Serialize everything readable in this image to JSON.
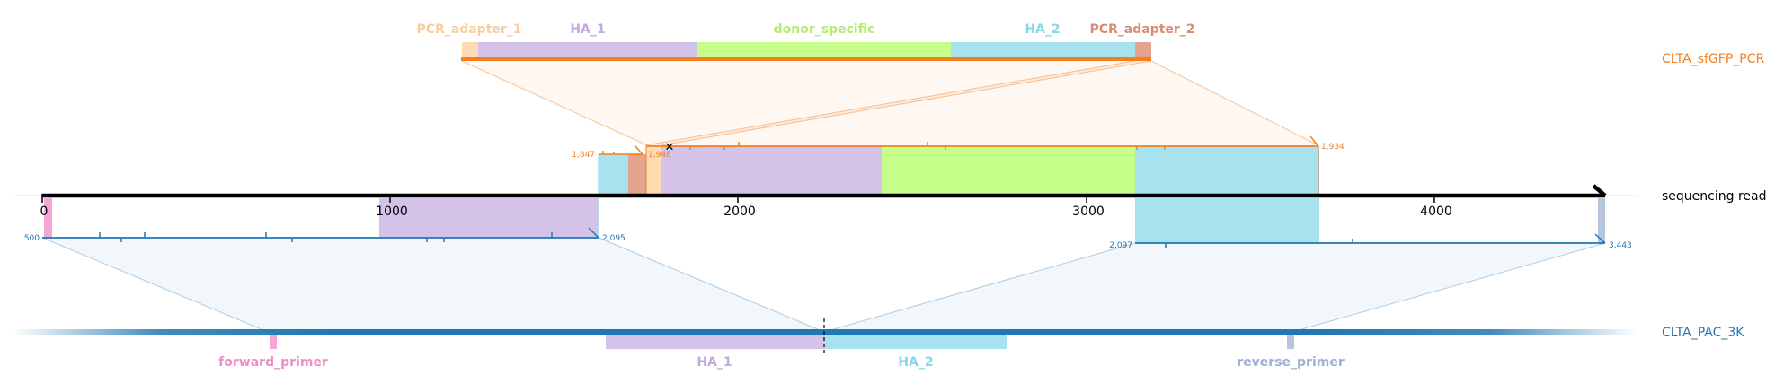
{
  "colors": {
    "orange": "#F37F1D",
    "blue": "#1F77B4",
    "black": "#000000",
    "ha1": "#D4C2E8",
    "ha2": "#A6E3EE",
    "donor": "#C5FF8A",
    "pcr1": "#FDDCB3",
    "pcr2": "#E4A590",
    "fwd": "#F4A6D7",
    "rev": "#B7C4DD",
    "ha1_text": "#C3A9E2",
    "ha2_text": "#86D7EA",
    "donor_text": "#B4EC6E",
    "pcr1_text": "#F8CE9C",
    "pcr2_text": "#DA8C72",
    "fwd_text": "#F08BC9",
    "rev_text": "#9FB0D4"
  },
  "tracks": {
    "top": "CLTA_sfGFP_PCR",
    "middle": "sequencing read",
    "bottom": "CLTA_PAC_3K"
  },
  "top_features": {
    "pcr_adapter_1": "PCR_adapter_1",
    "ha_1": "HA_1",
    "donor_specific": "donor_specific",
    "ha_2": "HA_2",
    "pcr_adapter_2": "PCR_adapter_2"
  },
  "bottom_features": {
    "forward_primer": "forward_primer",
    "ha_1": "HA_1",
    "ha_2": "HA_2",
    "reverse_primer": "reverse_primer"
  },
  "read_axis": {
    "ticks": [
      "0",
      "1000",
      "2000",
      "3000",
      "4000"
    ]
  },
  "alignments": {
    "top_left_start": "1,847",
    "top_mid_label": "1,948",
    "top_right_end": "1,934",
    "left_start": "500",
    "left_end": "2,095",
    "right_start": "2,097",
    "right_end": "3,443"
  }
}
